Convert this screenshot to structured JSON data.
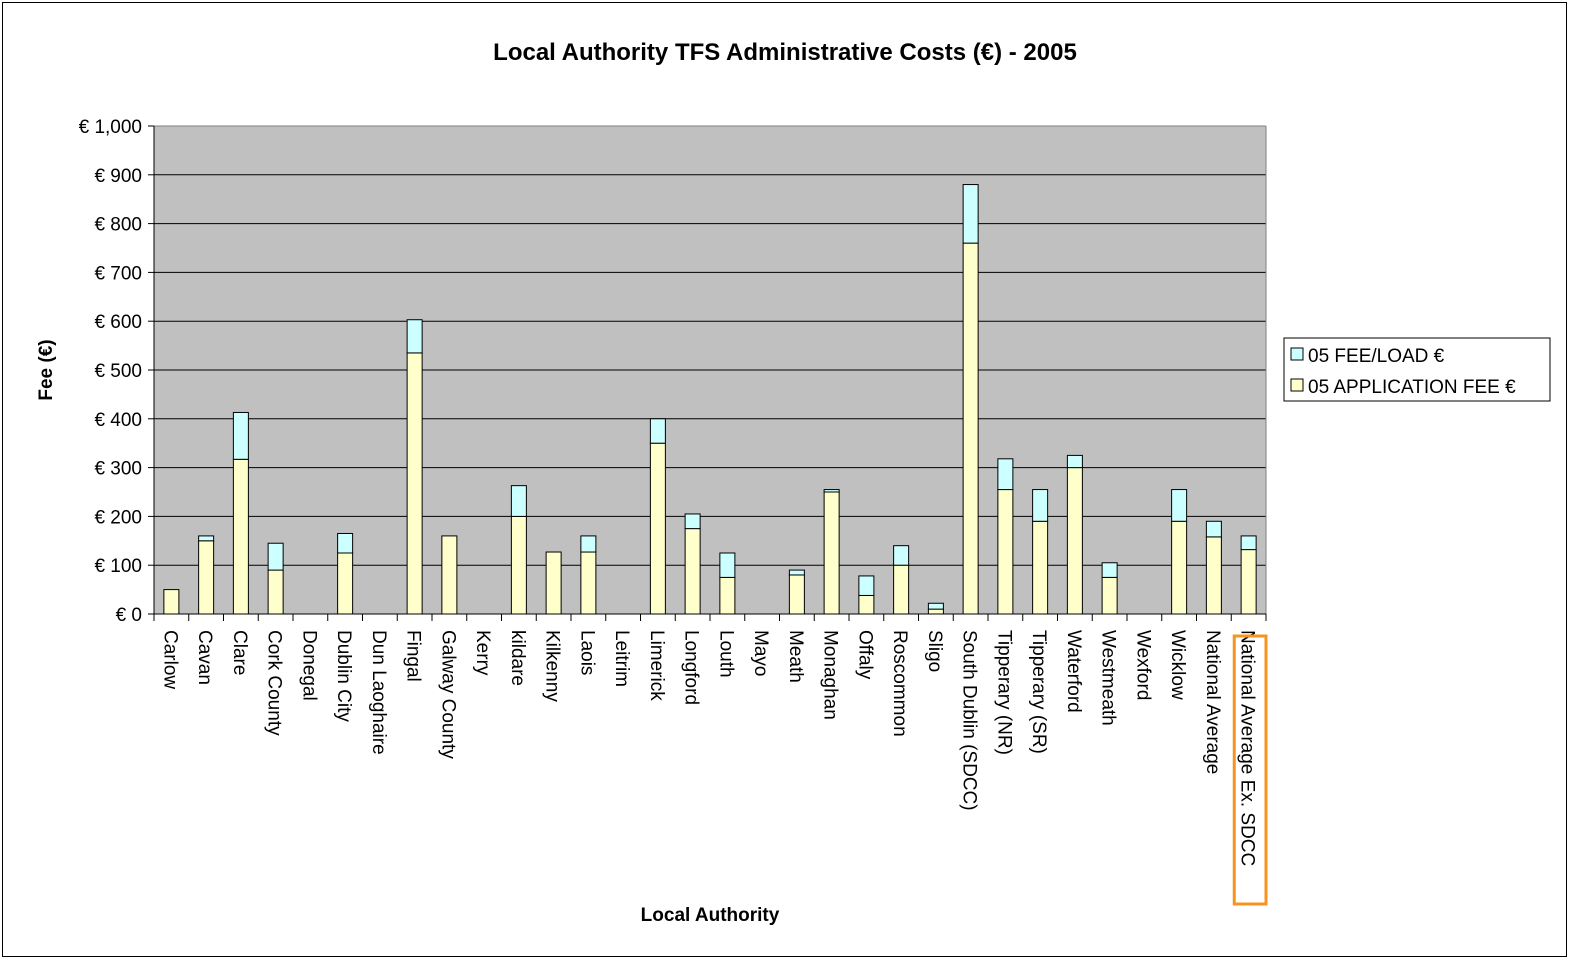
{
  "chart_data": {
    "type": "bar",
    "stacked": true,
    "title": "Local Authority TFS Administrative Costs (€) - 2005",
    "xlabel": "Local Authority",
    "ylabel": "Fee (€)",
    "ylim": [
      0,
      1000
    ],
    "yticks": [
      "€ 0",
      "€ 100",
      "€ 200",
      "€ 300",
      "€ 400",
      "€ 500",
      "€ 600",
      "€ 700",
      "€ 800",
      "€ 900",
      "€ 1,000"
    ],
    "grid": true,
    "legend_position": "right",
    "highlighted_category": "National Average Ex. SDCC",
    "colors": {
      "plot_background": "#C0C0C0",
      "application_fee": "#FFFFCC",
      "fee_load": "#CCFFFF",
      "highlight_box": "#F7941D"
    },
    "categories": [
      "Carlow",
      "Cavan",
      "Clare",
      "Cork County",
      "Donegal",
      "Dublin City",
      "Dun Laoghaire",
      "Fingal",
      "Galway County",
      "Kerry",
      "kildare",
      "Kilkenny",
      "Laois",
      "Leitrim",
      "Limerick",
      "Longford",
      "Louth",
      "Mayo",
      "Meath",
      "Monaghan",
      "Offaly",
      "Roscommon",
      "Sligo",
      "South Dublin (SDCC)",
      "Tipperary (NR)",
      "Tipperary (SR)",
      "Waterford",
      "Westmeath",
      "Wexford",
      "Wicklow",
      "National Average",
      "National Average Ex. SDCC"
    ],
    "series": [
      {
        "name": "05 APPLICATION FEE €",
        "values": [
          50,
          150,
          317,
          90,
          0,
          125,
          0,
          535,
          160,
          0,
          200,
          127,
          127,
          0,
          350,
          175,
          75,
          0,
          80,
          250,
          38,
          100,
          10,
          760,
          255,
          190,
          300,
          75,
          0,
          190,
          158,
          132
        ]
      },
      {
        "name": "05 FEE/LOAD €",
        "values": [
          0,
          10,
          96,
          55,
          0,
          40,
          0,
          68,
          0,
          0,
          63,
          0,
          33,
          0,
          50,
          30,
          50,
          0,
          10,
          5,
          40,
          40,
          12,
          120,
          63,
          65,
          25,
          30,
          0,
          65,
          32,
          28
        ]
      }
    ],
    "legend": [
      "05 FEE/LOAD €",
      "05 APPLICATION FEE €"
    ]
  }
}
